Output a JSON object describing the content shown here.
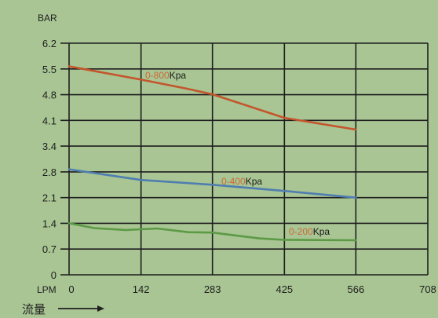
{
  "chart_data": {
    "type": "line",
    "ylabel": "BAR",
    "xlabel": "LPM",
    "xlabel_secondary": "流量",
    "x_ticks": [
      0,
      142,
      283,
      425,
      566,
      708
    ],
    "y_ticks": [
      0,
      0.7,
      1.4,
      2.1,
      2.8,
      3.4,
      4.1,
      4.8,
      5.5,
      6.2
    ],
    "xlim": [
      0,
      708
    ],
    "ylim": [
      0,
      6.2
    ],
    "grid": true,
    "series": [
      {
        "name": "0-800Kpa",
        "color": "#c4552c",
        "x": [
          0,
          142,
          230,
          283,
          425,
          566
        ],
        "y": [
          5.57,
          5.21,
          4.97,
          4.81,
          4.17,
          3.85
        ]
      },
      {
        "name": "0-400Kpa",
        "color": "#4f7db0",
        "x": [
          0,
          142,
          283,
          425,
          566
        ],
        "y": [
          2.86,
          2.58,
          2.45,
          2.28,
          2.1
        ]
      },
      {
        "name": "0-200Kpa",
        "color": "#5c9a45",
        "x": [
          0,
          50,
          112,
          174,
          235,
          283,
          329,
          375,
          425,
          566
        ],
        "y": [
          1.4,
          1.27,
          1.22,
          1.26,
          1.16,
          1.15,
          1.07,
          0.99,
          0.95,
          0.94
        ]
      }
    ]
  },
  "colors": {
    "background": "#a8c593",
    "grid": "#1e1e1e"
  },
  "icons": {
    "x_direction": "arrow-right-icon"
  }
}
